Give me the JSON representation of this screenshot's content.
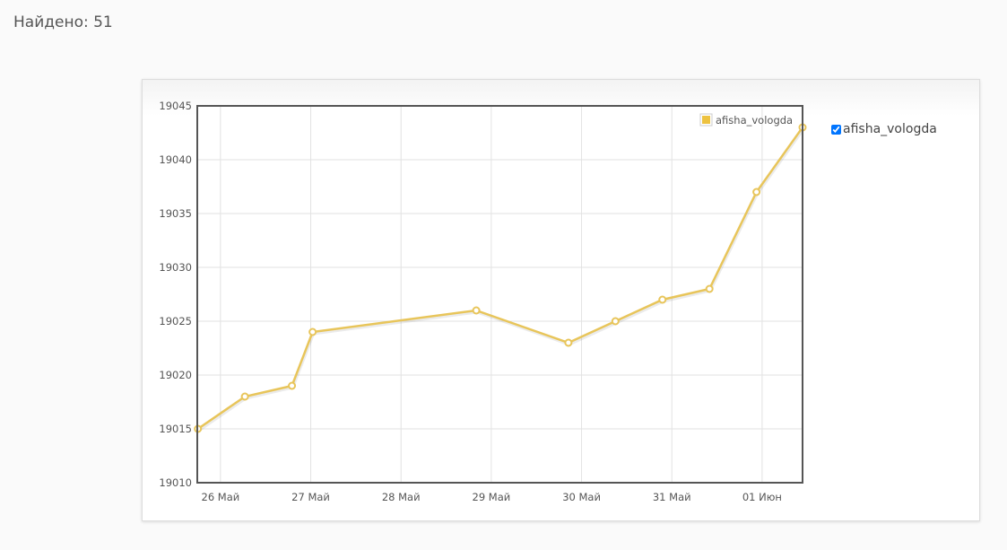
{
  "header": {
    "found_text": "Найдено: 51"
  },
  "legend": {
    "series_name": "afisha_vologda",
    "checked": true
  },
  "chart_data": {
    "type": "line",
    "title": "",
    "xlabel": "",
    "ylabel": "",
    "ylim": [
      19010,
      19045
    ],
    "xlim": [
      "25.05 17:50",
      "01.06 10:45"
    ],
    "yticks": [
      "19010",
      "19015",
      "19020",
      "19025",
      "19030",
      "19035",
      "19040",
      "19045"
    ],
    "xticks": [
      {
        "label": "26 Май",
        "at": "26.05 00:00"
      },
      {
        "label": "27 Май",
        "at": "27.05 00:00"
      },
      {
        "label": "28 Май",
        "at": "28.05 00:00"
      },
      {
        "label": "29 Май",
        "at": "29.05 00:00"
      },
      {
        "label": "30 Май",
        "at": "30.05 00:00"
      },
      {
        "label": "31 Май",
        "at": "31.05 00:00"
      },
      {
        "label": "01 Июн",
        "at": "01.06 00:00"
      }
    ],
    "grid": true,
    "legend_position": "top-right",
    "series": [
      {
        "name": "afisha_vologda",
        "color": "#e8c55a",
        "x": [
          "25.05 18:00",
          "26.05 06:30",
          "26.05 19:00",
          "27.05 00:30",
          "28.05 20:00",
          "29.05 20:30",
          "30.05 09:00",
          "30.05 21:30",
          "31.05 10:00",
          "31.05 22:30",
          "01.06 10:45"
        ],
        "values": [
          19015,
          19018,
          19019,
          19024,
          19026,
          19023,
          19025,
          19027,
          19028,
          19037,
          19043
        ]
      }
    ]
  }
}
